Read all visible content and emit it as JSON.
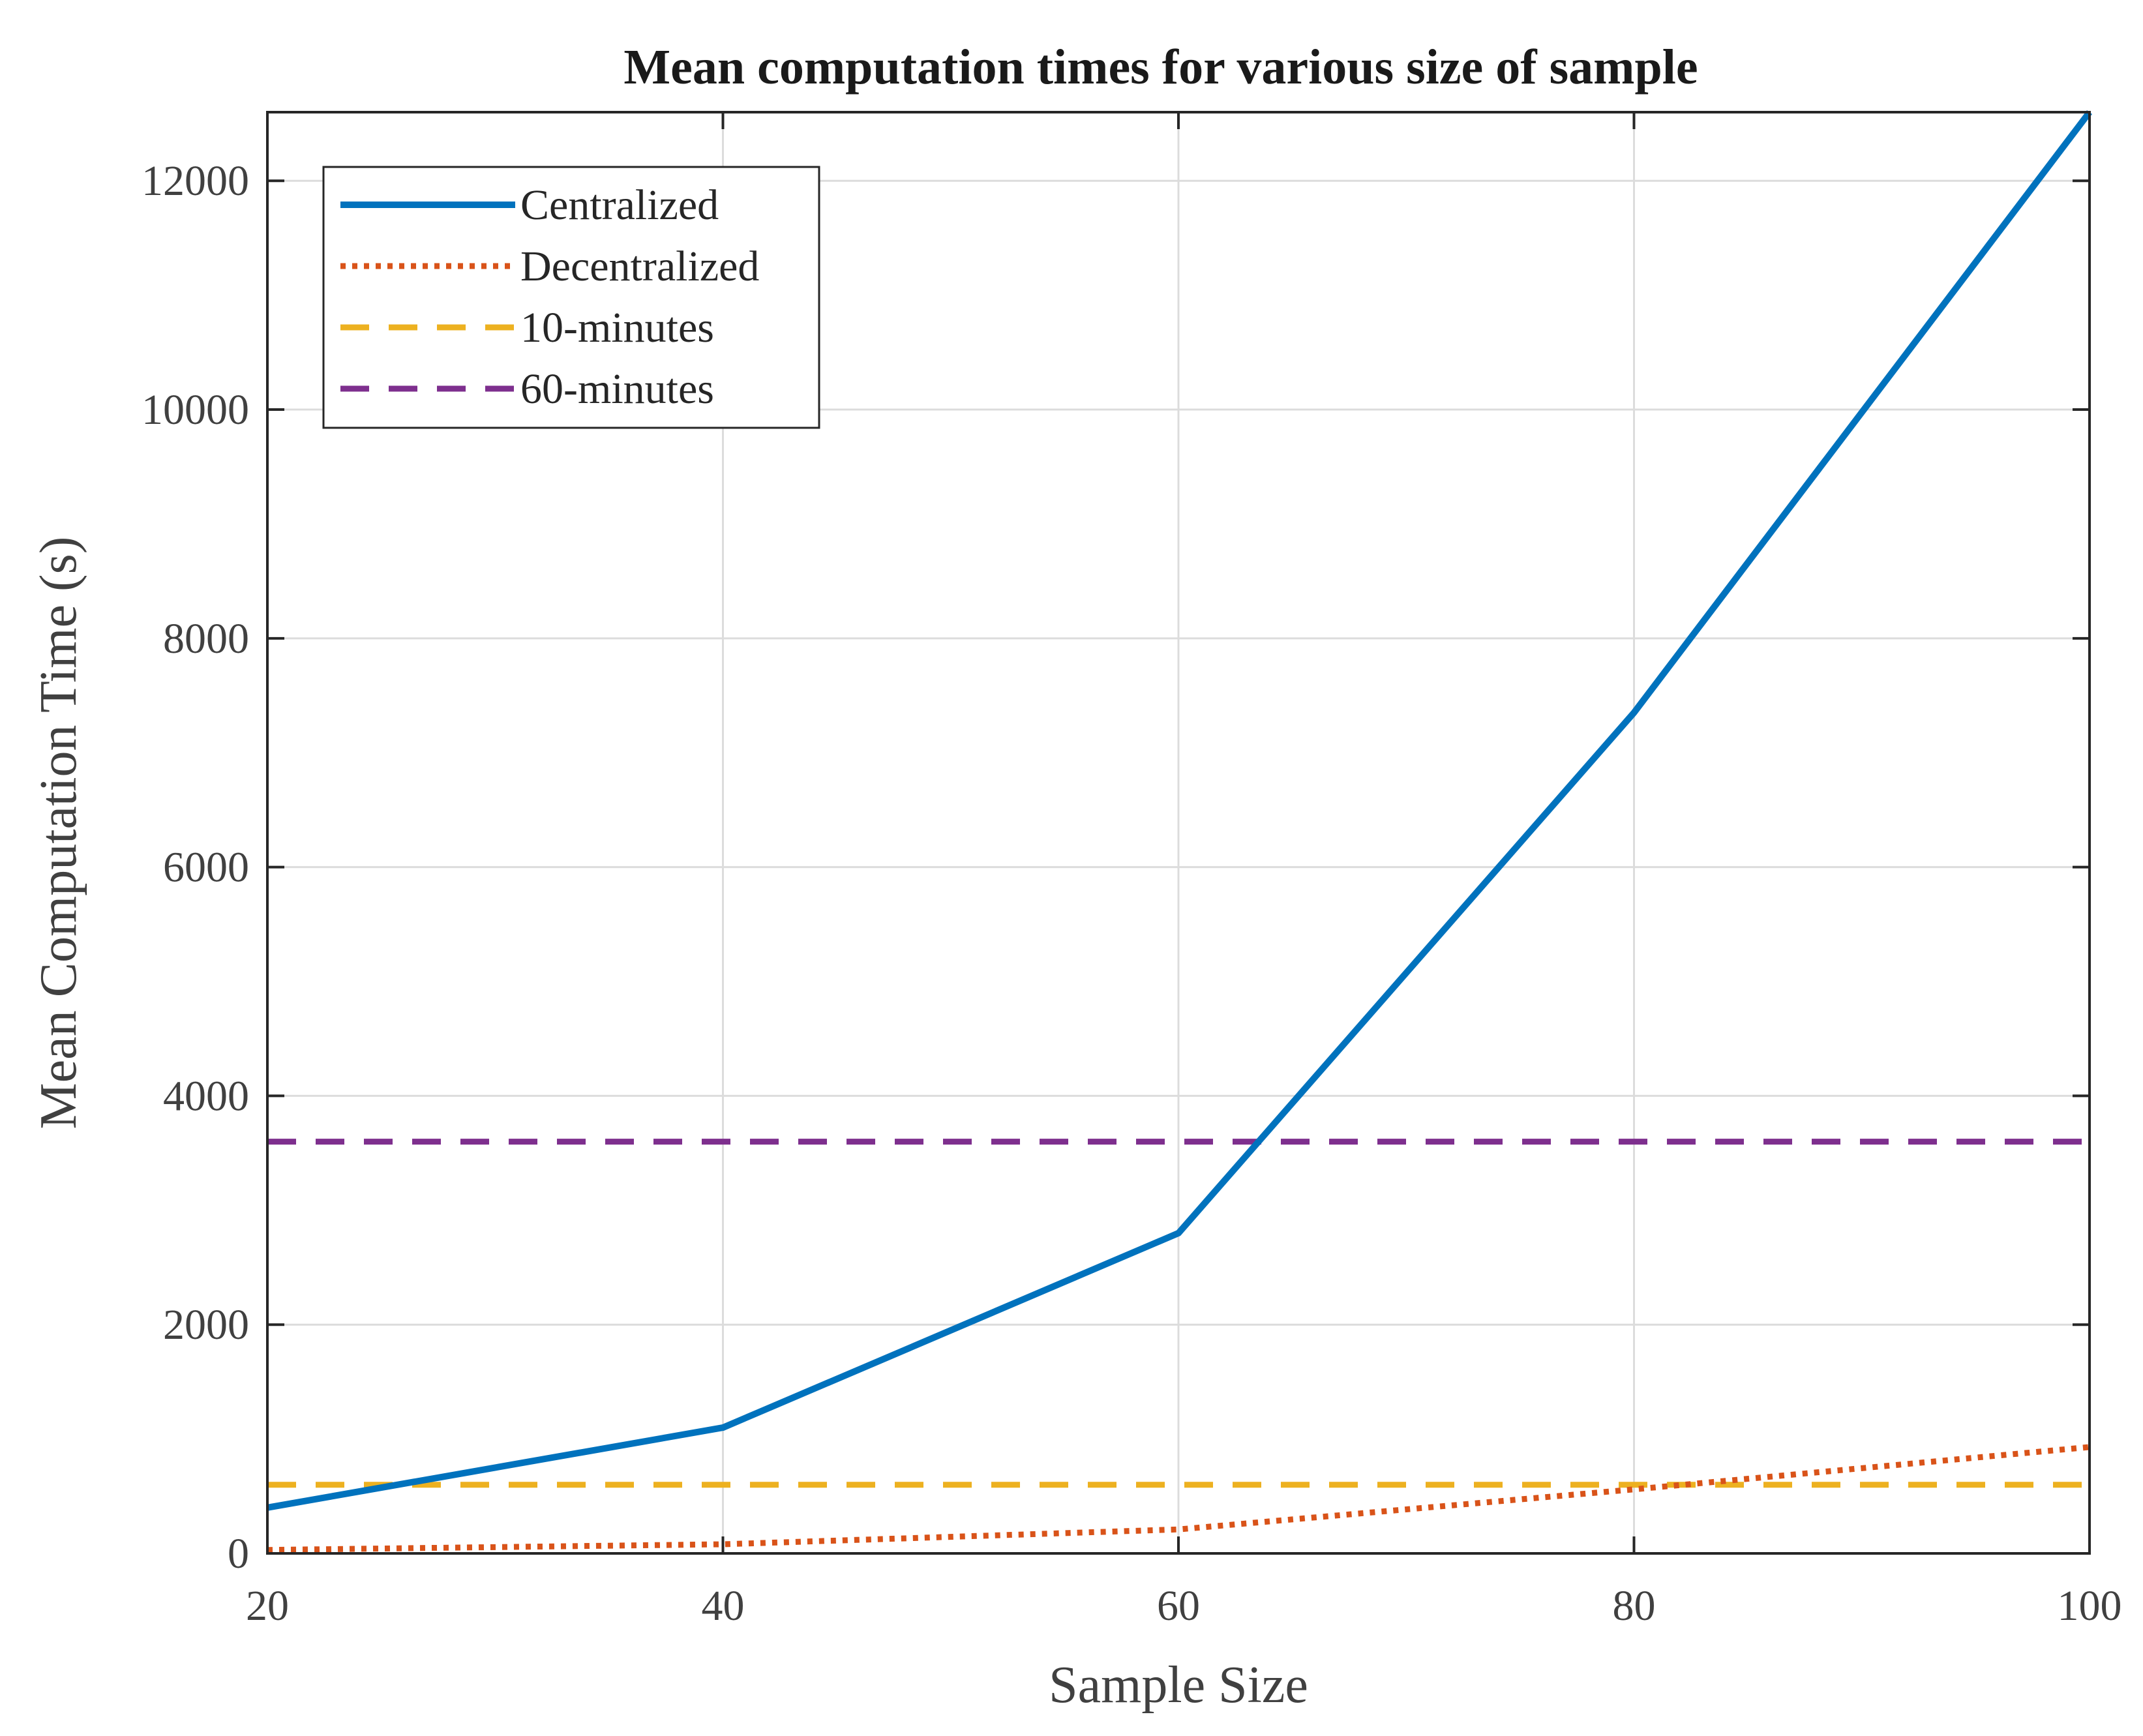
{
  "chart_data": {
    "type": "line",
    "title": "Mean computation times for various size of sample",
    "xlabel": "Sample Size",
    "ylabel": "Mean Computation Time (s)",
    "xlim": [
      20,
      100
    ],
    "ylim": [
      0,
      12600
    ],
    "xticks": [
      20,
      40,
      60,
      80,
      100
    ],
    "yticks": [
      0,
      2000,
      4000,
      6000,
      8000,
      10000,
      12000
    ],
    "grid": true,
    "legend_position": "top-left",
    "series": [
      {
        "name": "Centralized",
        "style": "solid",
        "color": "#0072BD",
        "x": [
          20,
          40,
          60,
          80,
          100
        ],
        "y": [
          400,
          1100,
          2800,
          7350,
          12600
        ]
      },
      {
        "name": "Decentralized",
        "style": "dotted",
        "color": "#D95319",
        "x": [
          20,
          40,
          60,
          80,
          100
        ],
        "y": [
          30,
          80,
          210,
          560,
          930
        ]
      },
      {
        "name": "10-minutes",
        "style": "dashed",
        "color": "#EDB120",
        "x": [
          20,
          100
        ],
        "y": [
          600,
          600
        ]
      },
      {
        "name": "60-minutes",
        "style": "dashed",
        "color": "#7E2F8E",
        "x": [
          20,
          100
        ],
        "y": [
          3600,
          3600
        ]
      }
    ]
  }
}
